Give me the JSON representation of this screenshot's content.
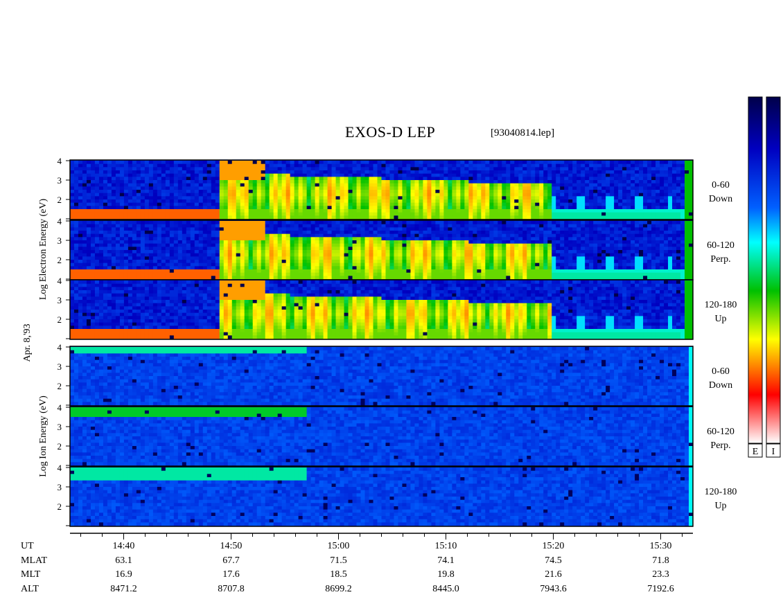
{
  "title": "EXOS-D LEP",
  "filename": "[93040814.lep]",
  "date_label": "Apr. 8,'93",
  "colors": {
    "colormap": [
      "#ffffff",
      "#ff0000",
      "#ff8000",
      "#ffff00",
      "#00c000",
      "#00ffff",
      "#0060ff",
      "#0000c0",
      "#00004a"
    ],
    "frame": "#000000"
  },
  "colorbars": [
    {
      "label": "E"
    },
    {
      "label": "I"
    }
  ],
  "chart_data": {
    "type": "heatmap",
    "description": "Energy-time spectrograms, log counts",
    "ylabel_groups": [
      {
        "species": "Electron",
        "lines": [
          "Log",
          "Electron",
          "Energy",
          "(eV)"
        ]
      },
      {
        "species": "Ion",
        "lines": [
          "Log",
          "Ion",
          "Energy",
          "(eV)"
        ]
      }
    ],
    "ylim": [
      1,
      4
    ],
    "yticks": [
      "4",
      "3",
      "2"
    ],
    "xlim_minutes": [
      35,
      93
    ],
    "xticks": [
      {
        "label": "14:40",
        "min": 40
      },
      {
        "label": "14:50",
        "min": 50
      },
      {
        "label": "15:00",
        "min": 60
      },
      {
        "label": "15:10",
        "min": 70
      },
      {
        "label": "15:20",
        "min": 80
      },
      {
        "label": "15:30",
        "min": 90
      }
    ],
    "panels": [
      {
        "species": "Electron",
        "pitch": "0-60",
        "direction": "Down"
      },
      {
        "species": "Electron",
        "pitch": "60-120",
        "direction": "Perp."
      },
      {
        "species": "Electron",
        "pitch": "120-180",
        "direction": "Up"
      },
      {
        "species": "Ion",
        "pitch": "0-60",
        "direction": "Down"
      },
      {
        "species": "Ion",
        "pitch": "60-120",
        "direction": "Perp."
      },
      {
        "species": "Ion",
        "pitch": "120-180",
        "direction": "Up"
      }
    ],
    "ephemeris": {
      "rows": [
        {
          "name": "UT",
          "values": [
            "14:40",
            "14:50",
            "15:00",
            "15:10",
            "15:20",
            "15:30"
          ]
        },
        {
          "name": "MLAT",
          "values": [
            "63.1",
            "67.7",
            "71.5",
            "74.1",
            "74.5",
            "71.8"
          ]
        },
        {
          "name": "MLT",
          "values": [
            "16.9",
            "17.6",
            "18.5",
            "19.8",
            "21.6",
            "23.3"
          ]
        },
        {
          "name": "ALT",
          "values": [
            "8471.2",
            "8707.8",
            "8699.2",
            "8445.0",
            "7943.6",
            "7192.6"
          ]
        }
      ]
    }
  }
}
